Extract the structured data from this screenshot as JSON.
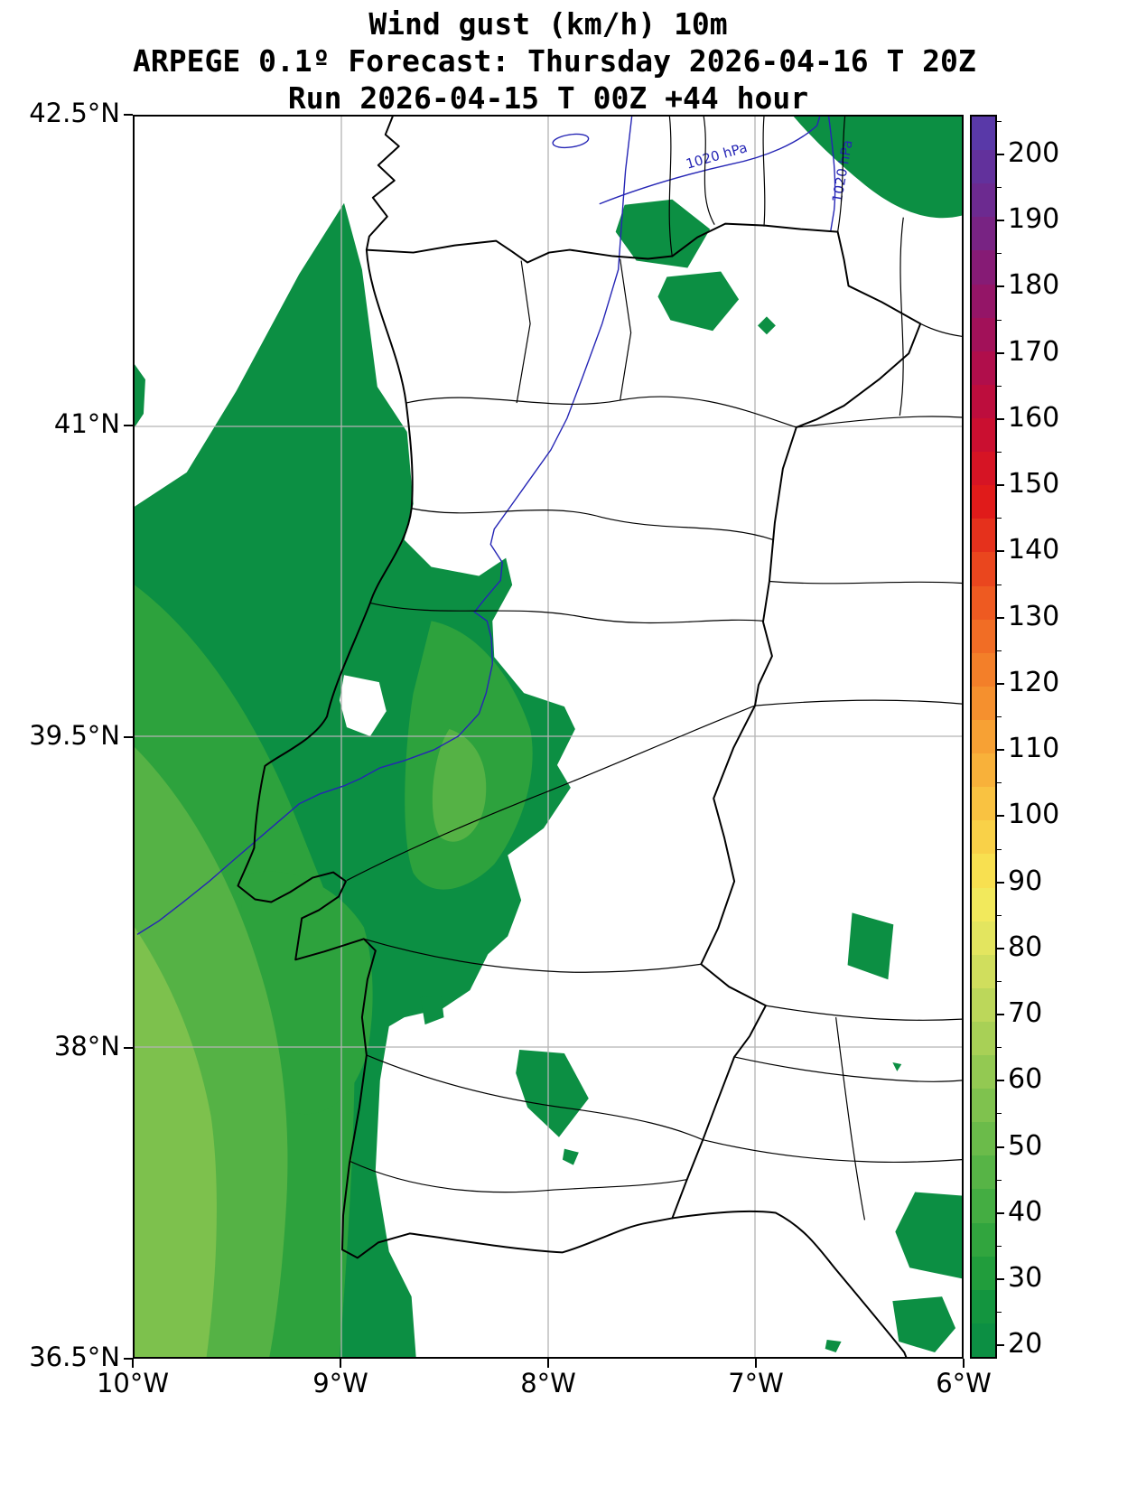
{
  "title": {
    "line1": "Wind gust (km/h) 10m",
    "line2": "ARPEGE 0.1º Forecast: Thursday 2026-04-16 T 20Z",
    "line3": "Run 2026-04-15 T 00Z +44 hour"
  },
  "axes": {
    "lat_ticks": [
      {
        "label": "42.5°N",
        "pos": 0.0
      },
      {
        "label": "41°N",
        "pos": 0.25
      },
      {
        "label": "39.5°N",
        "pos": 0.5
      },
      {
        "label": "38°N",
        "pos": 0.75
      },
      {
        "label": "36.5°N",
        "pos": 1.0
      }
    ],
    "lon_ticks": [
      {
        "label": "10°W",
        "pos": 0.0
      },
      {
        "label": "9°W",
        "pos": 0.25
      },
      {
        "label": "8°W",
        "pos": 0.5
      },
      {
        "label": "7°W",
        "pos": 0.75
      },
      {
        "label": "6°W",
        "pos": 1.0
      }
    ]
  },
  "isobars": {
    "labels": [
      "1020 hPa",
      "1020 hPa"
    ],
    "value_hpa": 1020,
    "color": "#2525b5"
  },
  "colorbar": {
    "tick_values": [
      20,
      30,
      40,
      50,
      60,
      70,
      80,
      90,
      100,
      110,
      120,
      130,
      140,
      150,
      160,
      170,
      180,
      190,
      200
    ],
    "segment_colors": [
      "#0c8f43",
      "#13953f",
      "#219d3c",
      "#31a53e",
      "#44ad42",
      "#57b446",
      "#6bbb4a",
      "#7fc24e",
      "#93c952",
      "#a8d056",
      "#bcd75a",
      "#d0de5d",
      "#e3e55f",
      "#f2e95c",
      "#f8e050",
      "#f9d148",
      "#f9c241",
      "#f8b13a",
      "#f7a134",
      "#f5902e",
      "#f37f29",
      "#f16d25",
      "#ee5a21",
      "#ea461e",
      "#e5311c",
      "#e01b1a",
      "#d61424",
      "#ca0f30",
      "#bd0d3d",
      "#b00e4b",
      "#a21159",
      "#941567",
      "#861b75",
      "#782383",
      "#6c2a90",
      "#62319c",
      "#5939a8"
    ]
  },
  "map_colors": {
    "levels": [
      "#0c8f43",
      "#2da23d",
      "#55b245",
      "#7dc14d"
    ],
    "grid": "#b4b4b4",
    "frame": "#000000"
  }
}
